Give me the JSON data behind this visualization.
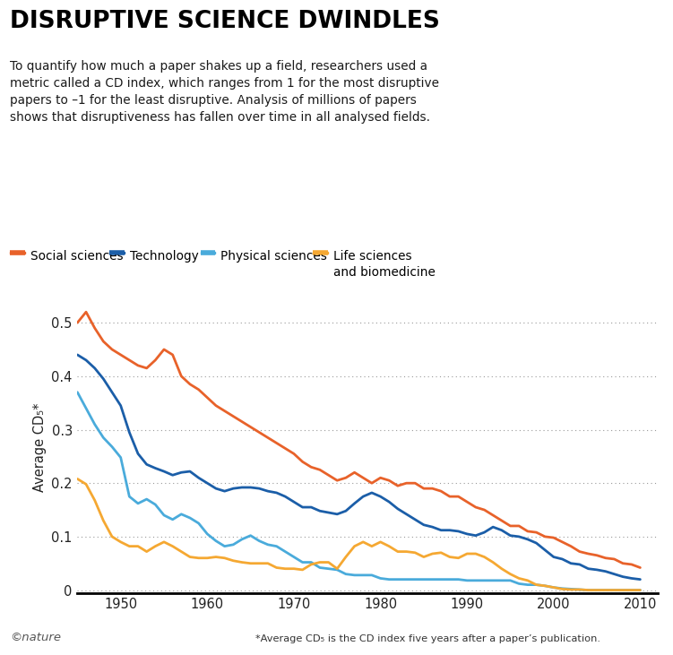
{
  "title": "DISRUPTIVE SCIENCE DWINDLES",
  "subtitle": "To quantify how much a paper shakes up a field, researchers used a\nmetric called a CD index, which ranges from 1 for the most disruptive\npapers to –1 for the least disruptive. Analysis of millions of papers\nshows that disruptiveness has fallen over time in all analysed fields.",
  "ylabel": "Average CD₅*",
  "footnote": "*Average CD₅ is the CD index five years after a paper’s publication.",
  "nature_credit": "©nature",
  "colors": {
    "social": "#E8622A",
    "technology": "#1B5EA8",
    "physical": "#4AABDB",
    "life": "#F5A832"
  },
  "xlim": [
    1945,
    2012
  ],
  "ylim": [
    -0.005,
    0.54
  ],
  "yticks": [
    0,
    0.1,
    0.2,
    0.3,
    0.4,
    0.5
  ],
  "xticks": [
    1950,
    1960,
    1970,
    1980,
    1990,
    2000,
    2010
  ],
  "social_sciences": {
    "x": [
      1945,
      1946,
      1947,
      1948,
      1949,
      1950,
      1951,
      1952,
      1953,
      1954,
      1955,
      1956,
      1957,
      1958,
      1959,
      1960,
      1961,
      1962,
      1963,
      1964,
      1965,
      1966,
      1967,
      1968,
      1969,
      1970,
      1971,
      1972,
      1973,
      1974,
      1975,
      1976,
      1977,
      1978,
      1979,
      1980,
      1981,
      1982,
      1983,
      1984,
      1985,
      1986,
      1987,
      1988,
      1989,
      1990,
      1991,
      1992,
      1993,
      1994,
      1995,
      1996,
      1997,
      1998,
      1999,
      2000,
      2001,
      2002,
      2003,
      2004,
      2005,
      2006,
      2007,
      2008,
      2009,
      2010
    ],
    "y": [
      0.5,
      0.52,
      0.49,
      0.465,
      0.45,
      0.44,
      0.43,
      0.42,
      0.415,
      0.43,
      0.45,
      0.44,
      0.4,
      0.385,
      0.375,
      0.36,
      0.345,
      0.335,
      0.325,
      0.315,
      0.305,
      0.295,
      0.285,
      0.275,
      0.265,
      0.255,
      0.24,
      0.23,
      0.225,
      0.215,
      0.205,
      0.21,
      0.22,
      0.21,
      0.2,
      0.21,
      0.205,
      0.195,
      0.2,
      0.2,
      0.19,
      0.19,
      0.185,
      0.175,
      0.175,
      0.165,
      0.155,
      0.15,
      0.14,
      0.13,
      0.12,
      0.12,
      0.11,
      0.108,
      0.1,
      0.098,
      0.09,
      0.082,
      0.072,
      0.068,
      0.065,
      0.06,
      0.058,
      0.05,
      0.048,
      0.042
    ]
  },
  "technology": {
    "x": [
      1945,
      1946,
      1947,
      1948,
      1949,
      1950,
      1951,
      1952,
      1953,
      1954,
      1955,
      1956,
      1957,
      1958,
      1959,
      1960,
      1961,
      1962,
      1963,
      1964,
      1965,
      1966,
      1967,
      1968,
      1969,
      1970,
      1971,
      1972,
      1973,
      1974,
      1975,
      1976,
      1977,
      1978,
      1979,
      1980,
      1981,
      1982,
      1983,
      1984,
      1985,
      1986,
      1987,
      1988,
      1989,
      1990,
      1991,
      1992,
      1993,
      1994,
      1995,
      1996,
      1997,
      1998,
      1999,
      2000,
      2001,
      2002,
      2003,
      2004,
      2005,
      2006,
      2007,
      2008,
      2009,
      2010
    ],
    "y": [
      0.44,
      0.43,
      0.415,
      0.395,
      0.37,
      0.345,
      0.295,
      0.255,
      0.235,
      0.228,
      0.222,
      0.215,
      0.22,
      0.222,
      0.21,
      0.2,
      0.19,
      0.185,
      0.19,
      0.192,
      0.192,
      0.19,
      0.185,
      0.182,
      0.175,
      0.165,
      0.155,
      0.155,
      0.148,
      0.145,
      0.142,
      0.148,
      0.162,
      0.175,
      0.182,
      0.175,
      0.165,
      0.152,
      0.142,
      0.132,
      0.122,
      0.118,
      0.112,
      0.112,
      0.11,
      0.105,
      0.102,
      0.108,
      0.118,
      0.112,
      0.102,
      0.1,
      0.095,
      0.088,
      0.075,
      0.062,
      0.058,
      0.05,
      0.048,
      0.04,
      0.038,
      0.035,
      0.03,
      0.025,
      0.022,
      0.02
    ]
  },
  "physical_sciences": {
    "x": [
      1945,
      1946,
      1947,
      1948,
      1949,
      1950,
      1951,
      1952,
      1953,
      1954,
      1955,
      1956,
      1957,
      1958,
      1959,
      1960,
      1961,
      1962,
      1963,
      1964,
      1965,
      1966,
      1967,
      1968,
      1969,
      1970,
      1971,
      1972,
      1973,
      1974,
      1975,
      1976,
      1977,
      1978,
      1979,
      1980,
      1981,
      1982,
      1983,
      1984,
      1985,
      1986,
      1987,
      1988,
      1989,
      1990,
      1991,
      1992,
      1993,
      1994,
      1995,
      1996,
      1997,
      1998,
      1999,
      2000,
      2001,
      2002,
      2003,
      2004,
      2005,
      2006,
      2007,
      2008,
      2009,
      2010
    ],
    "y": [
      0.37,
      0.34,
      0.31,
      0.285,
      0.268,
      0.248,
      0.175,
      0.162,
      0.17,
      0.16,
      0.14,
      0.132,
      0.142,
      0.135,
      0.125,
      0.105,
      0.092,
      0.082,
      0.085,
      0.095,
      0.102,
      0.092,
      0.085,
      0.082,
      0.072,
      0.062,
      0.052,
      0.052,
      0.042,
      0.04,
      0.038,
      0.03,
      0.028,
      0.028,
      0.028,
      0.022,
      0.02,
      0.02,
      0.02,
      0.02,
      0.02,
      0.02,
      0.02,
      0.02,
      0.02,
      0.018,
      0.018,
      0.018,
      0.018,
      0.018,
      0.018,
      0.012,
      0.01,
      0.01,
      0.008,
      0.005,
      0.003,
      0.002,
      0.001,
      0.0,
      0.0,
      0.0,
      0.0,
      0.0,
      0.0,
      0.0
    ]
  },
  "life_sciences": {
    "x": [
      1945,
      1946,
      1947,
      1948,
      1949,
      1950,
      1951,
      1952,
      1953,
      1954,
      1955,
      1956,
      1957,
      1958,
      1959,
      1960,
      1961,
      1962,
      1963,
      1964,
      1965,
      1966,
      1967,
      1968,
      1969,
      1970,
      1971,
      1972,
      1973,
      1974,
      1975,
      1976,
      1977,
      1978,
      1979,
      1980,
      1981,
      1982,
      1983,
      1984,
      1985,
      1986,
      1987,
      1988,
      1989,
      1990,
      1991,
      1992,
      1993,
      1994,
      1995,
      1996,
      1997,
      1998,
      1999,
      2000,
      2001,
      2002,
      2003,
      2004,
      2005,
      2006,
      2007,
      2008,
      2009,
      2010
    ],
    "y": [
      0.208,
      0.198,
      0.168,
      0.13,
      0.1,
      0.09,
      0.082,
      0.082,
      0.072,
      0.082,
      0.09,
      0.082,
      0.072,
      0.062,
      0.06,
      0.06,
      0.062,
      0.06,
      0.055,
      0.052,
      0.05,
      0.05,
      0.05,
      0.042,
      0.04,
      0.04,
      0.038,
      0.048,
      0.052,
      0.052,
      0.04,
      0.062,
      0.082,
      0.09,
      0.082,
      0.09,
      0.082,
      0.072,
      0.072,
      0.07,
      0.062,
      0.068,
      0.07,
      0.062,
      0.06,
      0.068,
      0.068,
      0.062,
      0.052,
      0.04,
      0.03,
      0.022,
      0.018,
      0.01,
      0.008,
      0.005,
      0.002,
      0.001,
      0.001,
      0.0,
      0.0,
      0.0,
      0.0,
      0.0,
      0.0,
      0.0
    ]
  }
}
